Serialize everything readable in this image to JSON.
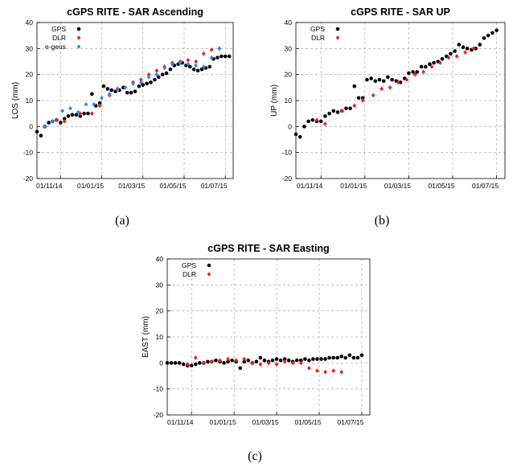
{
  "captions": [
    "(a)",
    "(b)",
    "(c)"
  ],
  "colors": {
    "GPS": "#000000",
    "DLR": "#e8221c",
    "e-geos": "#2b8ce6"
  },
  "chart_data": [
    {
      "type": "scatter",
      "title": "cGPS RITE - SAR Ascending",
      "ylabel": "LOS (mm)",
      "ylim": [
        -20,
        40
      ],
      "yticks": [
        -20,
        -10,
        0,
        10,
        20,
        30,
        40
      ],
      "xticks": [
        "01/11/14",
        "01/01/15",
        "01/03/15",
        "01/05/15",
        "01/07/15"
      ],
      "xlim": [
        0,
        100
      ],
      "xtick_values": [
        12,
        33,
        54,
        75,
        96
      ],
      "grid": true,
      "legend": "top-left",
      "series": [
        {
          "name": "GPS",
          "color": "#000000",
          "x": [
            0,
            2,
            4,
            6,
            8,
            10,
            12,
            14,
            16,
            18,
            20,
            22,
            24,
            26,
            28,
            30,
            32,
            34,
            36,
            38,
            40,
            42,
            44,
            46,
            48,
            50,
            52,
            54,
            56,
            58,
            60,
            62,
            64,
            66,
            68,
            70,
            72,
            74,
            76,
            78,
            80,
            82,
            84,
            86,
            88,
            90,
            92,
            94,
            96,
            98
          ],
          "y": [
            -2,
            -3.5,
            0,
            1.5,
            2,
            2.5,
            1.5,
            3,
            4,
            4.5,
            4.5,
            4,
            5,
            5,
            12.5,
            8,
            9,
            15.5,
            14.5,
            14,
            13.5,
            14,
            15,
            13,
            13,
            13.5,
            15.5,
            16,
            16.5,
            17,
            18,
            19,
            20,
            20.5,
            22,
            23.5,
            24,
            24.5,
            23.5,
            23,
            22,
            21.5,
            22,
            22.5,
            23,
            26,
            26.5,
            27,
            27,
            27
          ]
        },
        {
          "name": "DLR",
          "color": "#e8221c",
          "x": [
            10,
            14,
            22,
            28,
            32,
            37,
            41,
            45,
            49,
            53,
            57,
            61,
            65,
            69,
            73,
            77,
            81,
            85,
            89,
            93
          ],
          "y": [
            2.5,
            2,
            5,
            5,
            8,
            12,
            14.5,
            15,
            17,
            18,
            20,
            21.5,
            23,
            24.5,
            25,
            25.5,
            25,
            28,
            29.5,
            30
          ]
        },
        {
          "name": "e-geos",
          "color": "#2b8ce6",
          "x": [
            4,
            8,
            13,
            17,
            21,
            25,
            29,
            33,
            37,
            41,
            45,
            49,
            53,
            57,
            61,
            65,
            69,
            73,
            77,
            81,
            85,
            89,
            93
          ],
          "y": [
            0,
            2,
            6,
            7,
            5.5,
            8.5,
            8.5,
            11,
            12.5,
            14,
            15,
            16.5,
            17,
            19,
            20,
            22.5,
            24,
            24.5,
            24,
            23.5,
            23,
            26.5,
            30
          ]
        }
      ]
    },
    {
      "type": "scatter",
      "title": "cGPS RITE - SAR UP",
      "ylabel": "UP (mm)",
      "ylim": [
        -20,
        40
      ],
      "yticks": [
        -20,
        -10,
        0,
        10,
        20,
        30,
        40
      ],
      "xticks": [
        "01/11/14",
        "01/01/15",
        "01/03/15",
        "01/05/15",
        "01/07/15"
      ],
      "xlim": [
        0,
        100
      ],
      "xtick_values": [
        12,
        33,
        54,
        75,
        96
      ],
      "grid": true,
      "legend": "top-left",
      "series": [
        {
          "name": "GPS",
          "color": "#000000",
          "x": [
            0,
            2,
            4,
            6,
            8,
            10,
            12,
            14,
            16,
            18,
            20,
            22,
            24,
            26,
            28,
            30,
            32,
            34,
            36,
            38,
            40,
            42,
            44,
            46,
            48,
            50,
            52,
            54,
            56,
            58,
            60,
            62,
            64,
            66,
            68,
            70,
            72,
            74,
            76,
            78,
            80,
            82,
            84,
            86,
            88,
            90,
            92,
            94,
            96
          ],
          "y": [
            -3,
            -4,
            0,
            2,
            2.5,
            2,
            2,
            4,
            5,
            6,
            5.5,
            6,
            7,
            7,
            15.5,
            11,
            11,
            18,
            18.5,
            17.5,
            18,
            17.5,
            19,
            18,
            17.5,
            17,
            18.5,
            20.5,
            21,
            21,
            23,
            23,
            24,
            24.5,
            25,
            26,
            27,
            28,
            29,
            31.5,
            30.5,
            30,
            29.5,
            30,
            31.5,
            34,
            35,
            36,
            37
          ]
        },
        {
          "name": "DLR",
          "color": "#e8221c",
          "x": [
            10,
            14,
            22,
            28,
            32,
            37,
            41,
            45,
            49,
            53,
            57,
            61,
            65,
            69,
            73,
            77,
            81,
            85
          ],
          "y": [
            2.5,
            1,
            6,
            8,
            10,
            12,
            14.5,
            15,
            17,
            18,
            20,
            21,
            23,
            24.5,
            26.5,
            27,
            28.5,
            30
          ]
        }
      ]
    },
    {
      "type": "scatter",
      "title": "cGPS RITE - SAR Easting",
      "ylabel": "EAST (mm)",
      "ylim": [
        -20,
        40
      ],
      "yticks": [
        -20,
        -10,
        0,
        10,
        20,
        30,
        40
      ],
      "xticks": [
        "01/11/14",
        "01/01/15",
        "01/03/15",
        "01/05/15",
        "01/07/15"
      ],
      "xlim": [
        0,
        100
      ],
      "xtick_values": [
        12,
        33,
        54,
        75,
        96
      ],
      "grid": true,
      "legend": "top-left",
      "series": [
        {
          "name": "GPS",
          "color": "#000000",
          "x": [
            0,
            2,
            4,
            6,
            8,
            10,
            12,
            14,
            16,
            18,
            20,
            22,
            24,
            26,
            28,
            30,
            32,
            34,
            36,
            38,
            40,
            42,
            44,
            46,
            48,
            50,
            52,
            54,
            56,
            58,
            60,
            62,
            64,
            66,
            68,
            70,
            72,
            74,
            76,
            78,
            80,
            82,
            84,
            86,
            88,
            90,
            92,
            94,
            96
          ],
          "y": [
            0,
            0,
            0,
            0,
            -0.5,
            -1,
            -1,
            -0.5,
            0,
            0,
            0.5,
            0.5,
            1,
            0.5,
            0,
            0.5,
            1,
            0.5,
            -2,
            0.5,
            1,
            0,
            0.5,
            2,
            1,
            0.5,
            1,
            1.5,
            1,
            1.5,
            1,
            0.5,
            1,
            1,
            1.5,
            1,
            1.5,
            1.5,
            1.5,
            1.5,
            2,
            2,
            2,
            2.5,
            2,
            3,
            2,
            2,
            3
          ]
        },
        {
          "name": "DLR",
          "color": "#e8221c",
          "x": [
            10,
            14,
            18,
            22,
            26,
            30,
            34,
            38,
            42,
            46,
            50,
            54,
            58,
            62,
            66,
            70,
            74,
            78,
            82,
            86
          ],
          "y": [
            -0.5,
            2,
            0,
            0.5,
            1,
            1.5,
            1,
            1.5,
            0,
            -0.5,
            0,
            -0.5,
            0.5,
            0,
            0,
            -2,
            -3,
            -3.5,
            -3,
            -3.5
          ]
        }
      ]
    }
  ]
}
